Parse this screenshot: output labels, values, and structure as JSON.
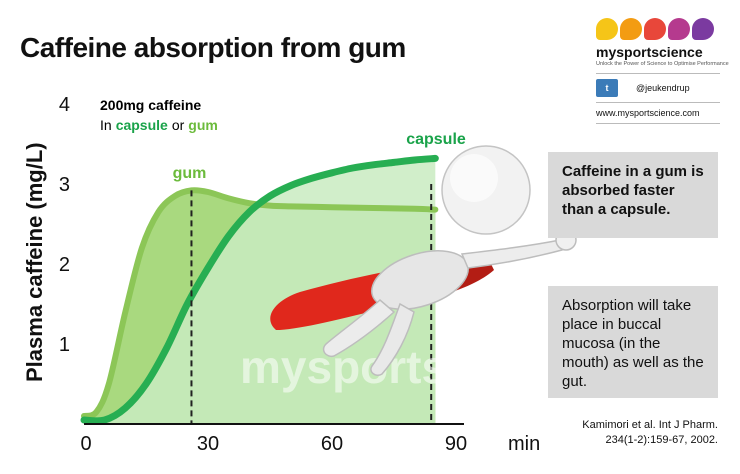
{
  "title": "Caffeine absorption from gum",
  "brand": {
    "name": "mysportscience",
    "tagline": "Unlock the Power of Science to Optimise Performance",
    "dot_colors": [
      "#f5c518",
      "#f39c12",
      "#e8473a",
      "#b53a8e",
      "#7b3aa0"
    ],
    "twitter_icon": "twitter-icon",
    "twitter_badge": "t",
    "twitter_handle": "@jeukendrup",
    "url": "www.mysportscience.com"
  },
  "legend": {
    "line1": "200mg caffeine",
    "prefix": "In",
    "capsule": "capsule",
    "connector": "or",
    "gum": "gum"
  },
  "callouts": {
    "main": "Caffeine in a gum is absorbed faster than a capsule.",
    "secondary": "Absorption will take place in buccal mucosa (in the mouth) as well as the gut."
  },
  "reference": {
    "line1": "Kamimori et al. Int J Pharm.",
    "line2": "234(1-2):159-67, 2002."
  },
  "watermark": "mysportscience",
  "colors": {
    "gum_fill": "#a9d97f",
    "gum_line": "#8cc657",
    "capsule_fill": "#c9ebc1",
    "capsule_line": "#27ae52",
    "gum_label": "#6cbb3c",
    "capsule_label": "#1aa34a"
  },
  "chart_data": {
    "type": "area",
    "ylabel": "Plasma caffeine (mg/L)",
    "x_unit": "min",
    "xlim": [
      0,
      90
    ],
    "ylim": [
      0,
      4
    ],
    "x_ticks": [
      0,
      30,
      60,
      90
    ],
    "y_ticks": [
      1,
      2,
      3,
      4
    ],
    "grid": false,
    "series": [
      {
        "name": "gum",
        "x": [
          0,
          3,
          6,
          10,
          14,
          18,
          22,
          26,
          30,
          35,
          40,
          45,
          50,
          60,
          70,
          80,
          85
        ],
        "y": [
          0.1,
          0.15,
          0.5,
          1.4,
          2.2,
          2.65,
          2.85,
          2.92,
          2.9,
          2.82,
          2.76,
          2.73,
          2.72,
          2.71,
          2.7,
          2.69,
          2.68
        ],
        "peak_x": 26,
        "color": "#8cc657"
      },
      {
        "name": "capsule",
        "x": [
          0,
          5,
          10,
          15,
          20,
          25,
          30,
          35,
          40,
          45,
          50,
          55,
          60,
          65,
          70,
          75,
          80,
          85
        ],
        "y": [
          0.05,
          0.05,
          0.2,
          0.5,
          0.95,
          1.5,
          1.95,
          2.35,
          2.65,
          2.85,
          2.98,
          3.07,
          3.14,
          3.2,
          3.24,
          3.27,
          3.3,
          3.32
        ],
        "drop_x": 84,
        "color": "#27ae52"
      }
    ]
  }
}
